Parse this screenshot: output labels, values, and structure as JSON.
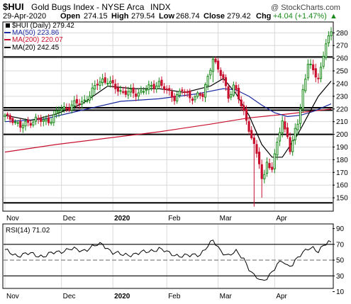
{
  "header": {
    "symbol": "$HUI",
    "name": "Gold Bugs Index - NYSE Arca",
    "exchange": "INDX",
    "date": "29-Apr-2020",
    "open_label": "Open",
    "open": "274.15",
    "high_label": "High",
    "high": "279.54",
    "low_label": "Low",
    "low": "268.74",
    "close_label": "Close",
    "close": "279.42",
    "chg_label": "Chg",
    "chg": "+4.04 (+1.47%)",
    "chg_arrow": "▲",
    "watermark": "@ StockCharts.com"
  },
  "chart_data": [
    {
      "type": "candlestick",
      "series": [
        {
          "name": "$HUI (Daily) 279.42",
          "color": "#000000",
          "marker": "square-icon"
        },
        {
          "name": "MA(50) 223.86",
          "color": "#1c2aa0"
        },
        {
          "name": "MA(200) 220.07",
          "color": "#c8102e"
        },
        {
          "name": "MA(20) 242.45",
          "color": "#000000"
        }
      ],
      "x_labels": [
        "Nov",
        "Dec",
        "2020",
        "Feb",
        "Mar",
        "Apr"
      ],
      "ylim": [
        140,
        288
      ],
      "y_ticks": [
        150,
        160,
        170,
        180,
        190,
        200,
        210,
        220,
        230,
        240,
        250,
        260,
        270,
        280
      ],
      "horizontal_levels": [
        146,
        200,
        219,
        221,
        261
      ],
      "bars": 128,
      "price_path": [
        [
          0,
          214
        ],
        [
          3,
          212
        ],
        [
          6,
          206
        ],
        [
          9,
          209
        ],
        [
          12,
          212
        ],
        [
          15,
          210
        ],
        [
          18,
          212
        ],
        [
          21,
          219
        ],
        [
          24,
          221
        ],
        [
          27,
          224
        ],
        [
          30,
          225
        ],
        [
          33,
          231
        ],
        [
          36,
          240
        ],
        [
          38,
          243
        ],
        [
          40,
          242
        ],
        [
          42,
          238
        ],
        [
          45,
          234
        ],
        [
          48,
          233
        ],
        [
          51,
          232
        ],
        [
          54,
          235
        ],
        [
          57,
          237
        ],
        [
          60,
          241
        ],
        [
          63,
          234
        ],
        [
          66,
          229
        ],
        [
          69,
          235
        ],
        [
          72,
          229
        ],
        [
          75,
          231
        ],
        [
          77,
          230
        ],
        [
          79,
          245
        ],
        [
          81,
          261
        ],
        [
          83,
          250
        ],
        [
          85,
          244
        ],
        [
          87,
          230
        ],
        [
          89,
          238
        ],
        [
          91,
          228
        ],
        [
          93,
          218
        ],
        [
          95,
          205
        ],
        [
          97,
          190
        ],
        [
          99,
          178
        ],
        [
          100,
          165
        ],
        [
          101,
          168
        ],
        [
          102,
          180
        ],
        [
          104,
          170
        ],
        [
          106,
          195
        ],
        [
          108,
          210
        ],
        [
          110,
          200
        ],
        [
          111,
          185
        ],
        [
          112,
          192
        ],
        [
          113,
          205
        ],
        [
          114,
          210
        ],
        [
          115,
          220
        ],
        [
          116,
          235
        ],
        [
          118,
          255
        ],
        [
          120,
          250
        ],
        [
          122,
          245
        ],
        [
          123,
          252
        ],
        [
          125,
          272
        ],
        [
          127,
          279
        ]
      ],
      "spikes": [
        [
          81,
          241,
          261
        ],
        [
          97,
          143,
          200
        ],
        [
          100,
          150,
          180
        ]
      ],
      "ma20": [
        [
          0,
          215
        ],
        [
          10,
          211
        ],
        [
          20,
          216
        ],
        [
          30,
          224
        ],
        [
          40,
          238
        ],
        [
          50,
          236
        ],
        [
          60,
          236
        ],
        [
          70,
          233
        ],
        [
          80,
          238
        ],
        [
          85,
          244
        ],
        [
          90,
          232
        ],
        [
          95,
          215
        ],
        [
          100,
          192
        ],
        [
          104,
          182
        ],
        [
          108,
          182
        ],
        [
          110,
          188
        ],
        [
          114,
          200
        ],
        [
          118,
          215
        ],
        [
          122,
          230
        ],
        [
          127,
          242
        ]
      ],
      "ma50": [
        [
          0,
          210
        ],
        [
          15,
          212
        ],
        [
          30,
          219
        ],
        [
          45,
          226
        ],
        [
          60,
          228
        ],
        [
          75,
          232
        ],
        [
          85,
          236
        ],
        [
          90,
          235
        ],
        [
          95,
          230
        ],
        [
          100,
          223
        ],
        [
          105,
          217
        ],
        [
          110,
          214
        ],
        [
          115,
          215
        ],
        [
          120,
          218
        ],
        [
          127,
          224
        ]
      ],
      "ma200": [
        [
          0,
          186
        ],
        [
          20,
          192
        ],
        [
          40,
          197
        ],
        [
          60,
          202
        ],
        [
          80,
          208
        ],
        [
          95,
          213
        ],
        [
          110,
          216
        ],
        [
          127,
          220
        ]
      ]
    },
    {
      "type": "line",
      "title": "RSI(14) 71.02",
      "ylim": [
        15,
        95
      ],
      "y_ticks": [
        10,
        30,
        50,
        70,
        90
      ],
      "reference_levels": [
        30,
        50,
        70
      ],
      "x_labels": [
        "Nov",
        "Dec",
        "2020",
        "Feb",
        "Mar",
        "Apr"
      ],
      "series": [
        {
          "name": "RSI(14) 71.02",
          "color": "#000000",
          "values": [
            [
              0,
              62
            ],
            [
              5,
              56
            ],
            [
              10,
              58
            ],
            [
              15,
              55
            ],
            [
              20,
              60
            ],
            [
              25,
              64
            ],
            [
              30,
              62
            ],
            [
              35,
              68
            ],
            [
              38,
              70
            ],
            [
              42,
              60
            ],
            [
              46,
              56
            ],
            [
              50,
              58
            ],
            [
              55,
              60
            ],
            [
              60,
              65
            ],
            [
              64,
              58
            ],
            [
              68,
              56
            ],
            [
              72,
              55
            ],
            [
              76,
              58
            ],
            [
              79,
              68
            ],
            [
              81,
              74
            ],
            [
              84,
              62
            ],
            [
              87,
              56
            ],
            [
              90,
              60
            ],
            [
              93,
              52
            ],
            [
              95,
              40
            ],
            [
              97,
              30
            ],
            [
              99,
              25
            ],
            [
              100,
              22
            ],
            [
              102,
              28
            ],
            [
              104,
              36
            ],
            [
              106,
              44
            ],
            [
              108,
              48
            ],
            [
              110,
              42
            ],
            [
              112,
              46
            ],
            [
              114,
              54
            ],
            [
              116,
              58
            ],
            [
              118,
              64
            ],
            [
              120,
              66
            ],
            [
              122,
              62
            ],
            [
              124,
              68
            ],
            [
              126,
              72
            ],
            [
              127,
              71
            ]
          ]
        }
      ]
    }
  ]
}
